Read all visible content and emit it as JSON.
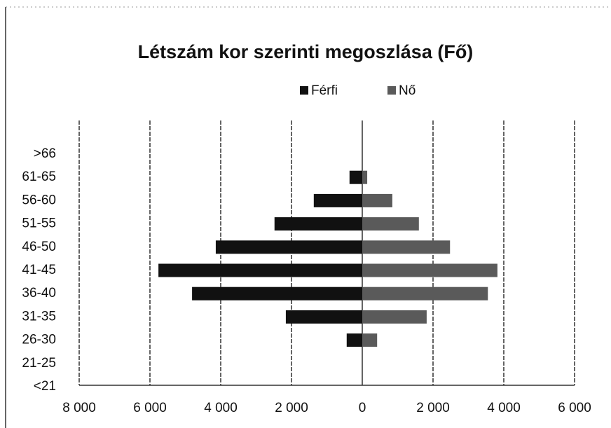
{
  "chart_data": {
    "type": "bar",
    "orientation": "horizontal",
    "stacked": true,
    "title": "Létszám kor szerinti megoszlása (Fő)",
    "categories": [
      ">66",
      "61-65",
      "56-60",
      "51-55",
      "46-50",
      "41-45",
      "36-40",
      "31-35",
      "26-30",
      "21-25",
      "<21"
    ],
    "series": [
      {
        "name": "Férfi",
        "color": "#111111",
        "values": [
          0,
          -360,
          -1370,
          -2480,
          -4140,
          -5760,
          -4810,
          -2160,
          -440,
          0,
          0
        ]
      },
      {
        "name": "Nő",
        "color": "#5a5a5a",
        "values": [
          0,
          140,
          850,
          1600,
          2480,
          3820,
          3550,
          1820,
          420,
          0,
          0
        ]
      }
    ],
    "xlim": [
      -8000,
      6000
    ],
    "xticks": [
      {
        "value": -8000,
        "label": "8 000"
      },
      {
        "value": -6000,
        "label": "6 000"
      },
      {
        "value": -4000,
        "label": "4 000"
      },
      {
        "value": -2000,
        "label": "2 000"
      },
      0,
      {
        "value": 2000,
        "label": "2 000"
      },
      {
        "value": 4000,
        "label": "4 000"
      },
      {
        "value": 6000,
        "label": "6 000"
      }
    ],
    "grid": true,
    "legend": "top"
  }
}
